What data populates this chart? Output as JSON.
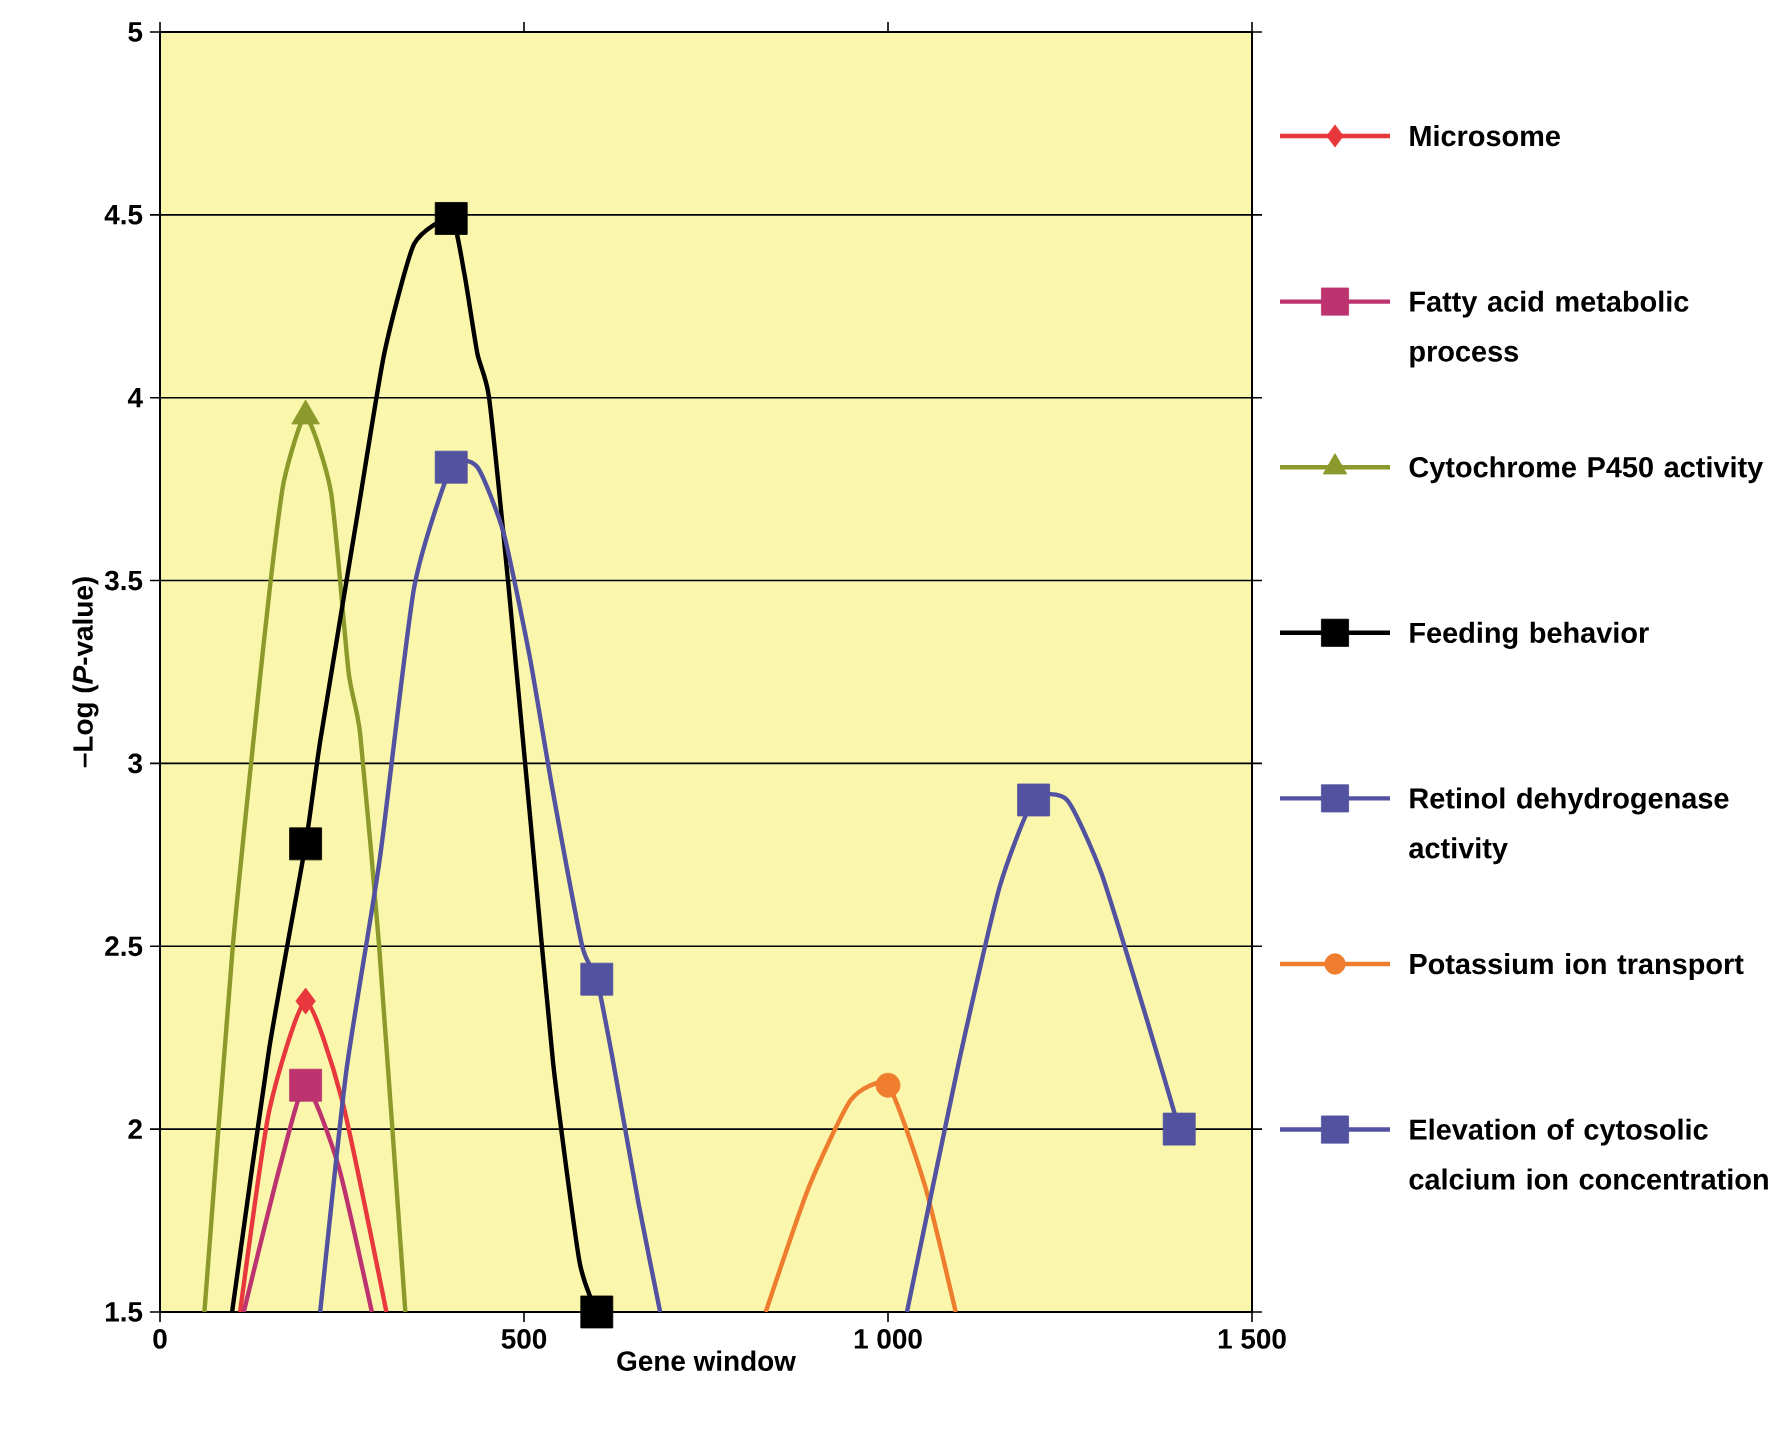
{
  "chart_data": {
    "type": "line",
    "xlabel": "Gene window",
    "ylabel": "–Log (*P*-value)",
    "xlim": [
      0,
      1500
    ],
    "ylim": [
      1.5,
      5
    ],
    "xticks": [
      0,
      500,
      {
        "value": 1000,
        "label": "1 000"
      },
      {
        "value": 1500,
        "label": "1 500"
      }
    ],
    "yticks": [
      1.5,
      2,
      2.5,
      3,
      3.5,
      4,
      4.5,
      5
    ],
    "grid": "y",
    "legend": "right",
    "series": [
      {
        "color": "#e8383d",
        "x": [
          110,
          150,
          200,
          250,
          311
        ],
        "values": [
          1.5,
          2.05,
          2.35,
          2.08,
          1.5
        ]
      },
      {
        "color": "#bd3370",
        "x": [
          115,
          165,
          200,
          245,
          291
        ],
        "values": [
          1.5,
          1.9,
          2.12,
          1.9,
          1.5
        ]
      },
      {
        "color": "#8c9a2b",
        "x": [
          61,
          100,
          134,
          152,
          170,
          200,
          235,
          259,
          275,
          301,
          337
        ],
        "values": [
          1.5,
          2.5,
          3.17,
          3.5,
          3.77,
          3.95,
          3.74,
          3.25,
          3.08,
          2.5,
          1.5
        ]
      },
      {
        "color": "#000000",
        "x": [
          99,
          150,
          200,
          220,
          272,
          308,
          349,
          400,
          418,
          436,
          452,
          478,
          509,
          540,
          576,
          600
        ],
        "values": [
          1.5,
          2.22,
          2.78,
          3.06,
          3.69,
          4.12,
          4.42,
          4.49,
          4.34,
          4.12,
          4.0,
          3.5,
          2.84,
          2.18,
          1.64,
          1.5
        ]
      },
      {
        "color": "#5252a0",
        "x": [
          220,
          256,
          302,
          349,
          400,
          436,
          472,
          508,
          539,
          580,
          600,
          621,
          657,
          687
        ],
        "values": [
          1.5,
          2.16,
          2.74,
          3.48,
          3.81,
          3.81,
          3.63,
          3.29,
          2.93,
          2.5,
          2.41,
          2.2,
          1.8,
          1.5
        ]
      },
      {
        "color": "#ee7d2e",
        "x": [
          832,
          891,
          949,
          1000,
          1050,
          1093
        ],
        "values": [
          1.5,
          1.84,
          2.08,
          2.12,
          1.85,
          1.5
        ]
      },
      {
        "color": "#5252a0",
        "x": [
          1026,
          1097,
          1153,
          1200,
          1246,
          1293,
          1357,
          1400
        ],
        "values": [
          1.5,
          2.18,
          2.66,
          2.9,
          2.9,
          2.7,
          2.29,
          2.0
        ]
      },
      {
        "type": "scatter",
        "name": "Microsome",
        "color": "#e8383d",
        "marker": "diamond",
        "x": [
          200
        ],
        "values": [
          2.35
        ]
      },
      {
        "type": "scatter",
        "name": "Fatty acid metabolic process",
        "color": "#bd3370",
        "marker": "square",
        "x": [
          200
        ],
        "values": [
          2.12
        ]
      },
      {
        "type": "scatter",
        "name": "Cytochrome P450 activity",
        "color": "#8c9a2b",
        "marker": "triangle",
        "x": [
          200
        ],
        "values": [
          3.95
        ]
      },
      {
        "type": "scatter",
        "name": "Feeding behavior",
        "color": "#000000",
        "marker": "square",
        "x": [
          200,
          400,
          600
        ],
        "values": [
          2.78,
          4.49,
          1.5
        ]
      },
      {
        "type": "scatter",
        "name": "Retinol dehydrogenase activity",
        "color": "#5252a0",
        "marker": "square",
        "x": [
          400,
          600
        ],
        "values": [
          3.81,
          2.41
        ]
      },
      {
        "type": "scatter",
        "name": "Potassium ion transport",
        "color": "#ee7d2e",
        "marker": "circle",
        "x": [
          1000
        ],
        "values": [
          2.12
        ]
      },
      {
        "type": "scatter",
        "name": "Elevation of cytosolic calcium ion concentration",
        "color": "#5252a0",
        "marker": "square",
        "x": [
          1200,
          1400
        ],
        "values": [
          2.9,
          2.0
        ]
      }
    ]
  }
}
